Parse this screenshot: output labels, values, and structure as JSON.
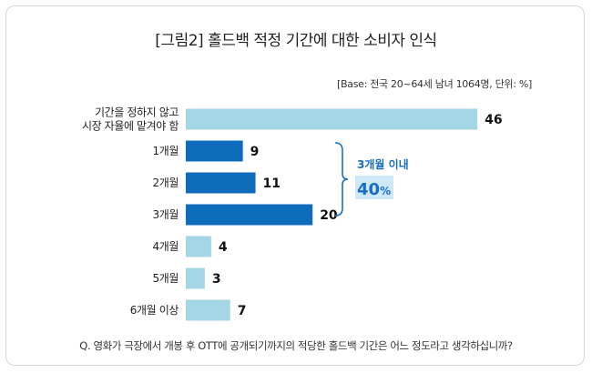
{
  "title": "[그림2] 홀드백 적정 기간에 대한 소비자 인식",
  "base_note": "[Base: 전국 20~64세 남녀 1064명, 단위: %]",
  "question": "Q. 영화가 극장에서 개봉 후 OTT에 공개되기까지의 적당한 홀드백 기간은 어느 정도라고 생각하십니까?",
  "colors": {
    "dark": "#0f6cbd",
    "light": "#a5d6e6",
    "annotation": "#1a6ec0",
    "highlight_bg": "#cfe8f5"
  },
  "chart_data": {
    "type": "bar",
    "orientation": "horizontal",
    "categories": [
      "기간을 정하지 않고\n시장 자율에 맡겨야 함",
      "1개월",
      "2개월",
      "3개월",
      "4개월",
      "5개월",
      "6개월 이상"
    ],
    "values": [
      46,
      9,
      11,
      20,
      4,
      3,
      7
    ],
    "highlight": [
      false,
      true,
      true,
      true,
      false,
      false,
      false
    ],
    "xlim": [
      0,
      50
    ],
    "unit": "%",
    "grid": false
  },
  "annotation": {
    "label": "3개월 이내",
    "value": "40",
    "unit": "%"
  }
}
